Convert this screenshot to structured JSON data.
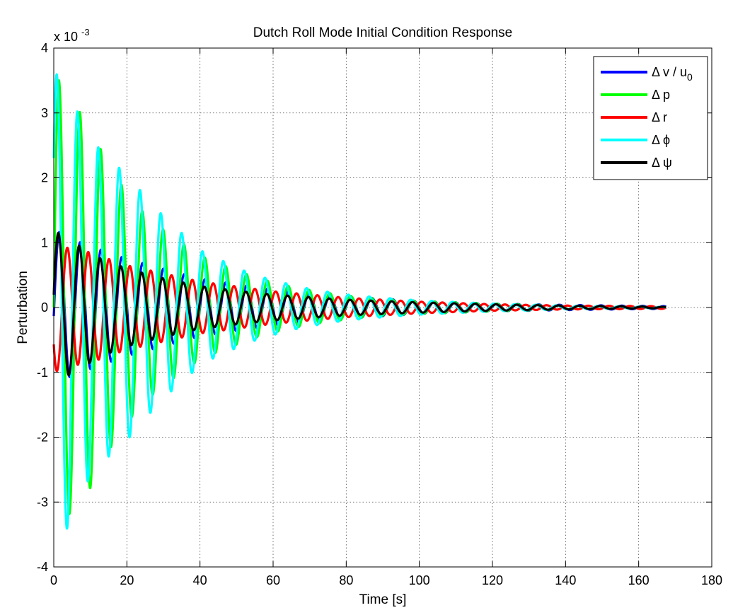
{
  "chart_data": {
    "type": "line",
    "title": "Dutch Roll Mode Initial Condition Response",
    "xlabel": "Time [s]",
    "ylabel": "Perturbation",
    "y_multiplier": "x 10",
    "y_multiplier_exp": "-3",
    "xlim": [
      0,
      180
    ],
    "ylim": [
      -4,
      4
    ],
    "x_ticks": [
      0,
      20,
      40,
      60,
      80,
      100,
      120,
      140,
      160,
      180
    ],
    "y_ticks": [
      -4,
      -3,
      -2,
      -1,
      0,
      1,
      2,
      3,
      4
    ],
    "grid": true,
    "legend_position": "top-right",
    "t_end": 167.5,
    "period_s": 5.7,
    "series": [
      {
        "name": "Δ v / u",
        "name_subscript": "0",
        "color": "#0000ff",
        "x": [
          0,
          2,
          5,
          10,
          20,
          40,
          60,
          80,
          100,
          120,
          140,
          167
        ],
        "amplitude": [
          1.2,
          1.15,
          1.05,
          0.95,
          0.75,
          0.45,
          0.28,
          0.17,
          0.1,
          0.06,
          0.04,
          0.02
        ]
      },
      {
        "name": "Δ p",
        "color": "#00ff00",
        "x": [
          0,
          1,
          4,
          9,
          14,
          19,
          24,
          30,
          35,
          40,
          46,
          51,
          56,
          62,
          67,
          73,
          78,
          84,
          90,
          100,
          120,
          140,
          167
        ],
        "amplitude": [
          3.6,
          3.55,
          3.2,
          2.9,
          2.3,
          1.85,
          1.5,
          1.2,
          1.0,
          0.8,
          0.66,
          0.55,
          0.45,
          0.36,
          0.3,
          0.24,
          0.2,
          0.16,
          0.13,
          0.1,
          0.06,
          0.03,
          0.01
        ]
      },
      {
        "name": "Δ r",
        "color": "#ff0000",
        "x": [
          0,
          2,
          5,
          10,
          20,
          40,
          60,
          80,
          100,
          120,
          140,
          167
        ],
        "amplitude": [
          1.0,
          0.95,
          0.9,
          0.85,
          0.65,
          0.4,
          0.25,
          0.15,
          0.09,
          0.05,
          0.03,
          0.02
        ]
      },
      {
        "name": "Δ ϕ",
        "color": "#00ffff",
        "x": [
          0,
          2.5,
          5,
          10,
          15,
          20,
          26,
          31,
          36,
          41,
          47,
          52,
          57,
          63,
          68,
          74,
          80,
          90,
          100,
          120,
          140,
          167
        ],
        "amplitude": [
          3.6,
          3.58,
          3.2,
          2.6,
          2.3,
          2.05,
          1.65,
          1.35,
          1.1,
          0.85,
          0.7,
          0.57,
          0.47,
          0.38,
          0.31,
          0.25,
          0.2,
          0.15,
          0.11,
          0.06,
          0.03,
          0.01
        ]
      },
      {
        "name": "Δ ψ",
        "color": "#000000",
        "x": [
          0,
          3,
          7,
          13,
          20,
          30,
          40,
          50,
          60,
          80,
          100,
          120,
          140,
          167
        ],
        "amplitude": [
          1.2,
          1.08,
          0.95,
          0.75,
          0.6,
          0.45,
          0.33,
          0.26,
          0.2,
          0.12,
          0.08,
          0.05,
          0.03,
          0.01
        ]
      }
    ]
  }
}
